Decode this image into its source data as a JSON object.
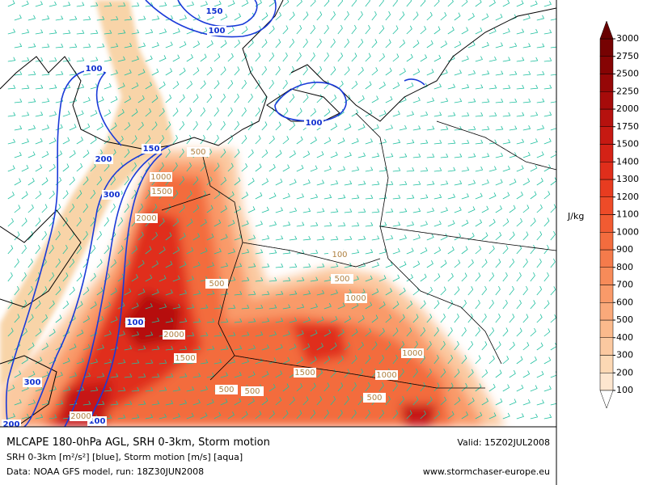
{
  "map": {
    "srh_labels": [
      150,
      100,
      100,
      200,
      150,
      300,
      100,
      100,
      300,
      100,
      200
    ],
    "cape_labels": [
      500,
      1000,
      1500,
      2000,
      500,
      100,
      500,
      1000,
      2000,
      1500,
      1000,
      1000,
      1500,
      500,
      500,
      500,
      2000
    ]
  },
  "colorbar": {
    "unit": "J/kg",
    "levels": [
      100,
      200,
      300,
      400,
      500,
      600,
      700,
      800,
      900,
      1000,
      1100,
      1200,
      1300,
      1400,
      1500,
      1750,
      2000,
      2250,
      2500,
      2750,
      3000
    ],
    "colors": [
      "#fde6cf",
      "#fcd8b4",
      "#fbc9a0",
      "#fbba8c",
      "#faa97a",
      "#f99a69",
      "#f78b59",
      "#f57b4b",
      "#f36c3e",
      "#f15b32",
      "#ee4b28",
      "#e83c20",
      "#e02e1b",
      "#d42216",
      "#c61912",
      "#b6110e",
      "#a60b0a",
      "#960707",
      "#860404",
      "#760202"
    ],
    "over_color": "#680000"
  },
  "footer": {
    "title": "MLCAPE 180-0hPa AGL, SRH 0-3km, Storm motion",
    "valid": "Valid: 15Z02JUL2008",
    "line2": "SRH 0-3km [m²/s²] [blue], Storm motion [m/s] [aqua]",
    "line3": "Data: NOAA GFS model, run: 18Z30JUN2008",
    "url": "www.stormchaser-europe.eu"
  }
}
